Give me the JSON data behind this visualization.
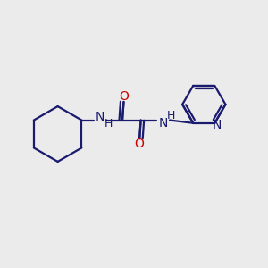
{
  "bg_color": "#ebebeb",
  "bond_color": "#1a1a6e",
  "nitrogen_color": "#1a1a6e",
  "oxygen_color": "#cc0000",
  "line_width": 1.6,
  "font_size_atom": 10,
  "fig_size": [
    3.0,
    3.0
  ],
  "dpi": 100,
  "xlim": [
    0,
    10
  ],
  "ylim": [
    0,
    10
  ]
}
